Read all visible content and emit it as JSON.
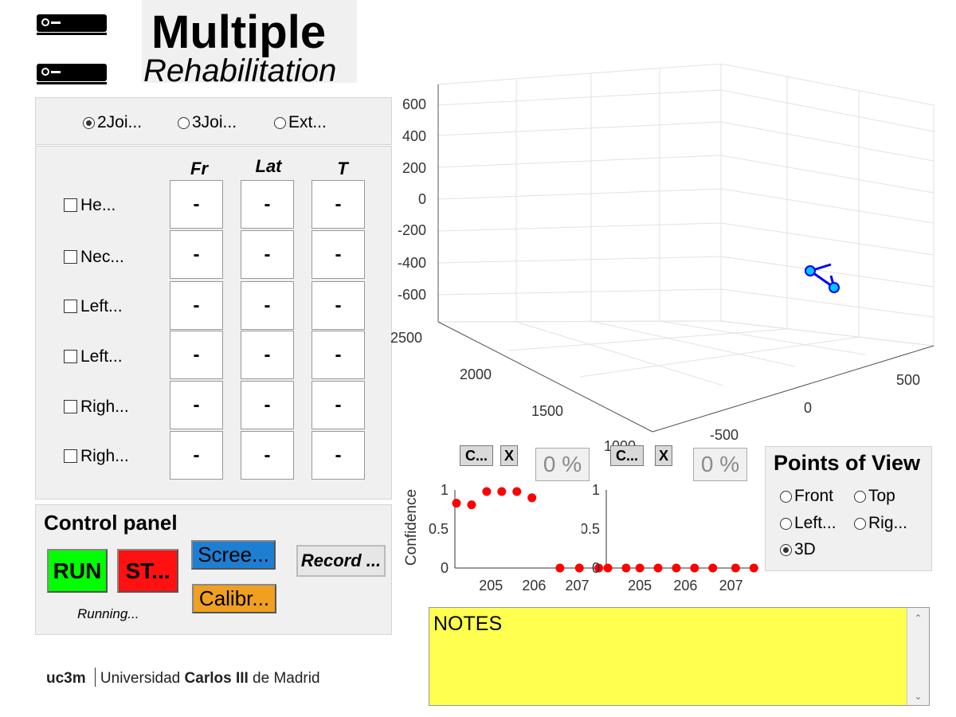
{
  "header": {
    "title_main": "Multiple",
    "title_sub": "Rehabilitation",
    "sensor_icons": [
      "kinect-sensor-icon",
      "kinect-sensor-icon"
    ]
  },
  "mode_selector": {
    "options": [
      {
        "label": "2Joi...",
        "selected": true
      },
      {
        "label": "3Joi...",
        "selected": false
      },
      {
        "label": "Ext...",
        "selected": false
      }
    ]
  },
  "joints_table": {
    "columns": [
      "Fr",
      "Lat",
      "T"
    ],
    "rows": [
      {
        "label": "He...",
        "values": [
          "-",
          "-",
          "-"
        ]
      },
      {
        "label": "Nec...",
        "values": [
          "-",
          "-",
          "-"
        ]
      },
      {
        "label": "Left...",
        "values": [
          "-",
          "-",
          "-"
        ]
      },
      {
        "label": "Left...",
        "values": [
          "-",
          "-",
          "-"
        ]
      },
      {
        "label": "Righ...",
        "values": [
          "-",
          "-",
          "-"
        ]
      },
      {
        "label": "Righ...",
        "values": [
          "-",
          "-",
          "-"
        ]
      }
    ]
  },
  "control_panel": {
    "title": "Control panel",
    "run_label": "RUN",
    "stop_label": "ST...",
    "screenshot_label": "Scree...",
    "calibrate_label": "Calibr...",
    "record_label": "Record ...",
    "status": "Running...",
    "colors": {
      "run": "#00ff00",
      "stop": "#ff1111",
      "screenshot": "#1e7fd2",
      "calibrate": "#f0a020"
    }
  },
  "plot3d": {
    "z_ticks": [
      "600",
      "400",
      "200",
      "0",
      "-200",
      "-400",
      "-600"
    ],
    "y_ticks": [
      "2500",
      "2000",
      "1500",
      "1000"
    ],
    "x_ticks": [
      "500",
      "0",
      "-500"
    ],
    "line_color": "#0000ff",
    "marker_color": "#00c8ff"
  },
  "confidence_controls": [
    {
      "button_label": "C...",
      "close_label": "X",
      "percent": "0 %"
    },
    {
      "button_label": "C...",
      "close_label": "X",
      "percent": "0 %"
    }
  ],
  "chart_data": [
    {
      "type": "scatter",
      "title": "",
      "ylabel": "Confidence",
      "xlabel": "",
      "x_ticks": [
        "205",
        "206",
        "207"
      ],
      "y_ticks": [
        "0",
        "0.5",
        "1"
      ],
      "xlim": [
        204.2,
        207.6
      ],
      "ylim": [
        0,
        1
      ],
      "marker_color": "#ff0000",
      "x": [
        204.2,
        204.55,
        204.9,
        205.25,
        205.6,
        205.95,
        206.6,
        207.05,
        207.5
      ],
      "y": [
        0.83,
        0.81,
        0.98,
        0.98,
        0.98,
        0.9,
        0.0,
        0.0,
        0.0
      ]
    },
    {
      "type": "scatter",
      "title": "",
      "ylabel": "",
      "xlabel": "",
      "x_ticks": [
        "205",
        "206",
        "207"
      ],
      "y_ticks": [
        "0",
        "0.5",
        "1"
      ],
      "xlim": [
        204.3,
        207.6
      ],
      "ylim": [
        0,
        1
      ],
      "marker_color": "#ff0000",
      "x": [
        204.3,
        204.7,
        205.0,
        205.4,
        205.8,
        206.2,
        206.6,
        207.1,
        207.5
      ],
      "y": [
        0,
        0,
        0,
        0,
        0,
        0,
        0,
        0,
        0
      ]
    }
  ],
  "points_of_view": {
    "title": "Points of View",
    "options": [
      {
        "label": "Front",
        "selected": false
      },
      {
        "label": "Top",
        "selected": false
      },
      {
        "label": "Left...",
        "selected": false
      },
      {
        "label": "Rig...",
        "selected": false
      },
      {
        "label": "3D",
        "selected": true
      }
    ]
  },
  "notes": {
    "text": "NOTES"
  },
  "footer": {
    "logo_mark": "uc3m",
    "university_prefix": "Universidad ",
    "university_bold": "Carlos III",
    "university_suffix": " de Madrid"
  }
}
